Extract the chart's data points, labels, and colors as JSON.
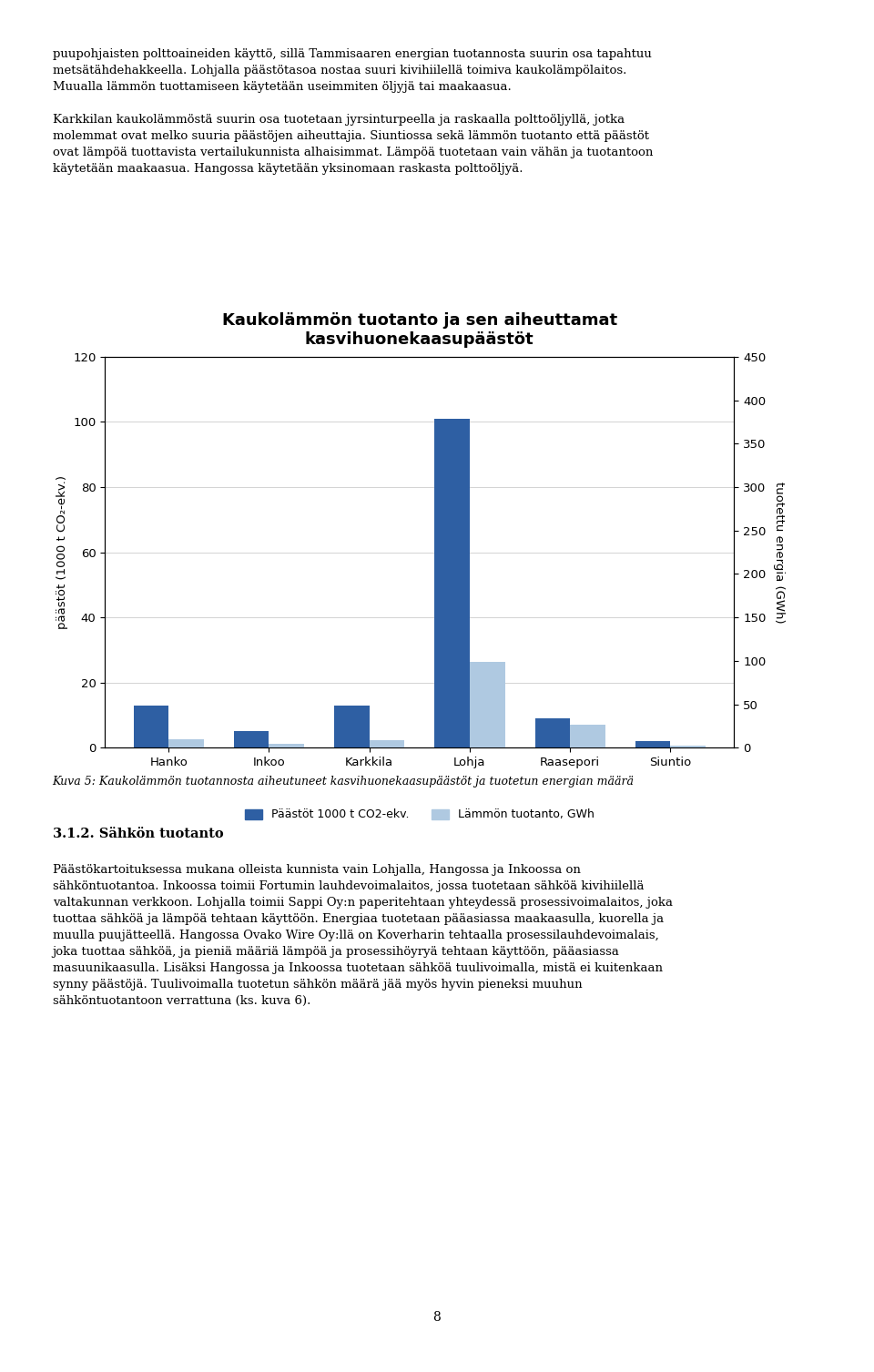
{
  "title_line1": "Kaukolämmön tuotanto ja sen aiheuttamat",
  "title_line2": "kasvihuonekaasupäästöt",
  "categories": [
    "Hanko",
    "Inkoo",
    "Karkkila",
    "Lohja",
    "Raasepori",
    "Siuntio"
  ],
  "emissions": [
    13,
    5,
    13,
    101,
    9,
    2
  ],
  "heat_production": [
    10,
    4,
    9,
    99,
    27,
    2
  ],
  "ylabel_left": "päästöt (1000 t CO₂-ekv.)",
  "ylabel_right": "tuotettu energia (GWh)",
  "ylim_left": [
    0,
    120
  ],
  "ylim_right": [
    0,
    450
  ],
  "yticks_left": [
    0,
    20,
    40,
    60,
    80,
    100,
    120
  ],
  "yticks_right": [
    0,
    50,
    100,
    150,
    200,
    250,
    300,
    350,
    400,
    450
  ],
  "legend_emissions": "Päästöt 1000 t CO2-ekv.",
  "legend_heat": "Lämmön tuotanto, GWh",
  "bar_color_emissions": "#2E5FA3",
  "bar_color_heat": "#AFC9E1",
  "bar_width": 0.35,
  "text_top": "puupohjaisten polttoaineiden käyttö, sillä Tammisaaren energian tuotannosta suurin osa tapahtuu\nmetsätähdehakkeella. Lohjalla päästötasoa nostaa suuri kivihiilellä toimiva kaukolämpölaitos.\nMuualla lämmön tuottamiseen käytetään useimmiten öljyjä tai maakaasua.\n\nKarkkilan kaukolämmöstä suurin osa tuotetaan jyrsinturpeella ja raskaalla polttoöljyllä, jotka\nmolemmat ovat melko suuria päästöjen aiheuttajia. Siuntiossa sekä lämmön tuotanto että päästöt\novat lämpöä tuottavista vertailukunnista alhaisimmat. Lämpöä tuotetaan vain vähän ja tuotantoon\nkäytetään maakaasua. Hangossa käytetään yksinomaan raskasta polttoöljyä.",
  "caption": "Kuva 5: Kaukolämmön tuotannosta aiheutuneet kasvihuonekaasupäästöt ja tuotetun energian määrä",
  "section_heading": "3.1.2. Sähkön tuotanto",
  "text_bottom": "Päästökartoituksessa mukana olleista kunnista vain Lohjalla, Hangossa ja Inkoossa on\nsähköntuotantoa. Inkoossa toimii Fortumin lauhdevoimalaitos, jossa tuotetaan sähköä kivihiilellä\nvaltakunnan verkkoon. Lohjalla toimii Sappi Oy:n paperitehtaan yhteydessä prosessivoimalaitos, joka\ntuottaa sähköä ja lämpöä tehtaan käyttöön. Energiaa tuotetaan pääasiassa maakaasulla, kuorella ja\nmuulla puujätteellä. Hangossa Ovako Wire Oy:llä on Koverharin tehtaalla prosessilauhdevoimalais,\njoka tuottaa sähköä, ja pieniä määriä lämpöä ja prosessihöyryä tehtaan käyttöön, pääasiassa\nmasuunikaasulla. Lisäksi Hangossa ja Inkoossa tuotetaan sähköä tuulivoimalla, mistä ei kuitenkaan\nsynny päästöjä. Tuulivoimalla tuotetun sähkön määrä jää myös hyvin pieneksi muuhun\nsähköntuotantoon verrattuna (ks. kuva 6).",
  "page_number": "8",
  "fig_width": 9.6,
  "fig_height": 15.07,
  "dpi": 100
}
